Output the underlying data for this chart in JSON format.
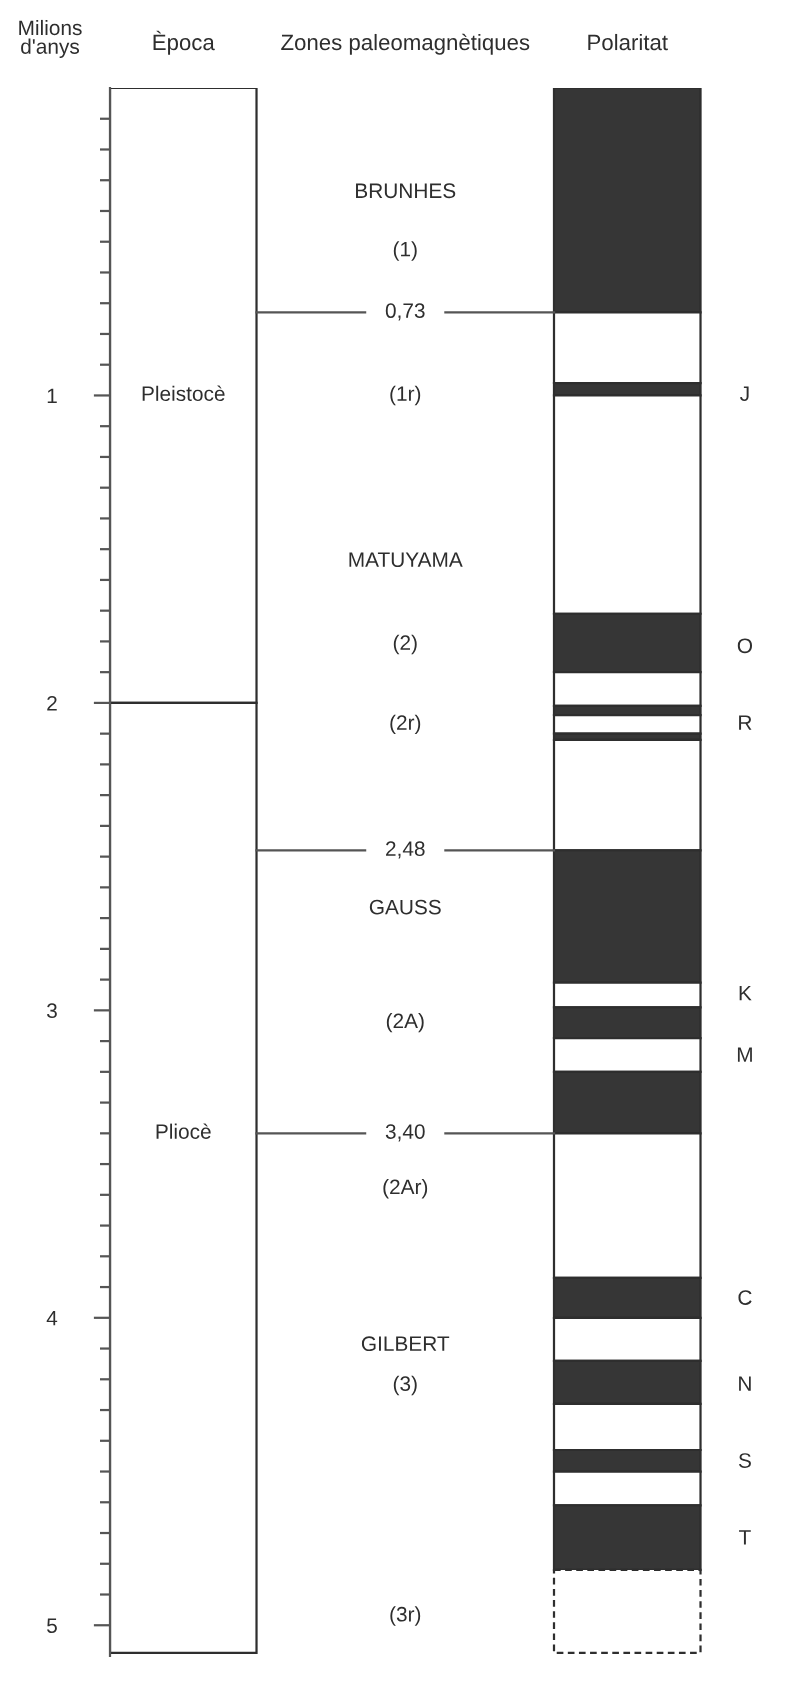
{
  "chart_data": {
    "type": "bar",
    "stacked": true,
    "categories": [
      "Època",
      "Zones paleomagnètiques",
      "Polaritat"
    ],
    "ylabel": "Milions\nd'anys",
    "ylim": [
      5.1,
      0
    ],
    "yticks": [
      1,
      2,
      3,
      4,
      5
    ],
    "series": [
      {
        "color": "#ffffff",
        "values": [
          2,
          null,
          null
        ]
      },
      {
        "color": "#ffffff",
        "values": [
          3.09,
          null,
          null
        ]
      },
      {
        "color": "#363636",
        "values": [
          null,
          null,
          0.73
        ]
      },
      {
        "color": "#ffffff",
        "values": [
          null,
          null,
          0.23
        ]
      },
      {
        "color": "#363636",
        "values": [
          null,
          null,
          0.04
        ]
      },
      {
        "color": "#ffffff",
        "values": [
          null,
          null,
          0.71
        ]
      },
      {
        "color": "#363636",
        "values": [
          null,
          null,
          0.19
        ]
      },
      {
        "color": "#ffffff",
        "values": [
          null,
          null,
          0.11
        ]
      },
      {
        "color": "#363636",
        "values": [
          null,
          null,
          0.03
        ]
      },
      {
        "color": "#ffffff",
        "values": [
          null,
          null,
          0.06
        ]
      },
      {
        "color": "#363636",
        "values": [
          null,
          null,
          0.02
        ]
      },
      {
        "color": "#ffffff",
        "values": [
          null,
          null,
          0.36
        ]
      },
      {
        "color": "#363636",
        "values": [
          null,
          null,
          0.43
        ]
      },
      {
        "color": "#ffffff",
        "values": [
          null,
          null,
          0.08
        ]
      },
      {
        "color": "#363636",
        "values": [
          null,
          null,
          0.1
        ]
      },
      {
        "color": "#ffffff",
        "values": [
          null,
          null,
          0.11
        ]
      },
      {
        "color": "#363636",
        "values": [
          null,
          null,
          0.2
        ]
      },
      {
        "color": "#ffffff",
        "values": [
          null,
          null,
          0.47
        ]
      },
      {
        "color": "#363636",
        "values": [
          null,
          null,
          0.13
        ]
      },
      {
        "color": "#ffffff",
        "values": [
          null,
          null,
          0.14
        ]
      },
      {
        "color": "#363636",
        "values": [
          null,
          null,
          0.14
        ]
      },
      {
        "color": "#ffffff",
        "values": [
          null,
          null,
          0.15
        ]
      },
      {
        "color": "#363636",
        "values": [
          null,
          null,
          0.07
        ]
      },
      {
        "color": "#ffffff",
        "values": [
          null,
          null,
          0.11
        ]
      },
      {
        "color": "#363636",
        "values": [
          null,
          null,
          0.21
        ]
      },
      {
        "color": "#ffffff",
        "values": [
          null,
          null,
          0.27
        ],
        "line_style": "dashed"
      }
    ],
    "ref_lines": [
      {
        "axis": "y",
        "value": 0.73,
        "label": "0,73"
      },
      {
        "axis": "y",
        "value": 2.48,
        "label": "2,48"
      },
      {
        "axis": "y",
        "value": 3.4,
        "label": "3,40"
      }
    ],
    "annotations": [
      "Pleistocè",
      "Pliocè",
      "BRUNHES",
      "(1)",
      "(1r)",
      "MATUYAMA",
      "(2)",
      "(2r)",
      "GAUSS",
      "(2A)",
      "(2Ar)",
      "GILBERT",
      "(3)",
      "(3r)",
      "J",
      "O",
      "R",
      "K",
      "M",
      "C",
      "N",
      "S",
      "T"
    ]
  }
}
